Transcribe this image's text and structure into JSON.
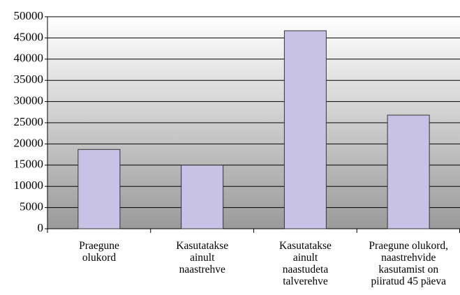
{
  "chart_data": {
    "type": "bar",
    "categories": [
      "Praegune\nolukord",
      "Kasutatakse\nainult\nnaastrehve",
      "Kasutatakse\nainult\nnaastudeta\ntalverehve",
      "Praegune olukord,\nnaastrehvide\nkasutamist on\npiiratud 45 päeva"
    ],
    "values": [
      18700,
      15000,
      46700,
      26800
    ],
    "color": "#c8c3e6",
    "ylim": [
      0,
      50000
    ],
    "yticks": [
      0,
      5000,
      10000,
      15000,
      20000,
      25000,
      30000,
      35000,
      40000,
      45000,
      50000
    ],
    "grid": true
  }
}
